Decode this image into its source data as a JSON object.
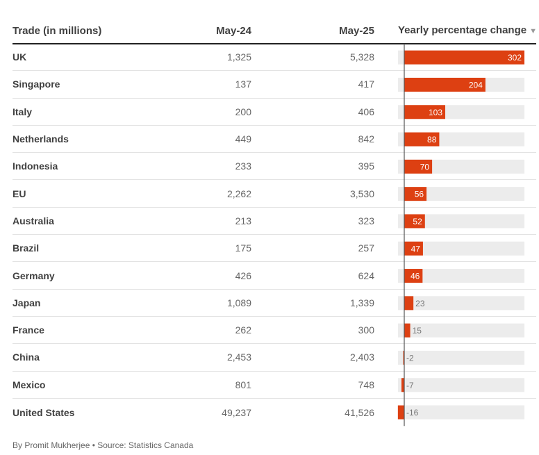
{
  "chart_data": {
    "type": "table",
    "columns": [
      "Trade (in millions)",
      "May-24",
      "May-25",
      "Yearly percentage change"
    ],
    "sort_indicator": "▼",
    "rows": [
      {
        "country": "UK",
        "may24": "1,325",
        "may25": "5,328",
        "change": 302
      },
      {
        "country": "Singapore",
        "may24": "137",
        "may25": "417",
        "change": 204
      },
      {
        "country": "Italy",
        "may24": "200",
        "may25": "406",
        "change": 103
      },
      {
        "country": "Netherlands",
        "may24": "449",
        "may25": "842",
        "change": 88
      },
      {
        "country": "Indonesia",
        "may24": "233",
        "may25": "395",
        "change": 70
      },
      {
        "country": "EU",
        "may24": "2,262",
        "may25": "3,530",
        "change": 56
      },
      {
        "country": "Australia",
        "may24": "213",
        "may25": "323",
        "change": 52
      },
      {
        "country": "Brazil",
        "may24": "175",
        "may25": "257",
        "change": 47
      },
      {
        "country": "Germany",
        "may24": "426",
        "may25": "624",
        "change": 46
      },
      {
        "country": "Japan",
        "may24": "1,089",
        "may25": "1,339",
        "change": 23
      },
      {
        "country": "France",
        "may24": "262",
        "may25": "300",
        "change": 15
      },
      {
        "country": "China",
        "may24": "2,453",
        "may25": "2,403",
        "change": -2
      },
      {
        "country": "Mexico",
        "may24": "801",
        "may25": "748",
        "change": -7
      },
      {
        "country": "United States",
        "may24": "49,237",
        "may25": "41,526",
        "change": -16
      }
    ],
    "bar_range": [
      -16,
      302
    ],
    "colors": {
      "bar": "#dd4012",
      "track": "#ececec",
      "axis": "#555555"
    }
  },
  "footer": "By Promit Mukherjee • Source: Statistics Canada"
}
